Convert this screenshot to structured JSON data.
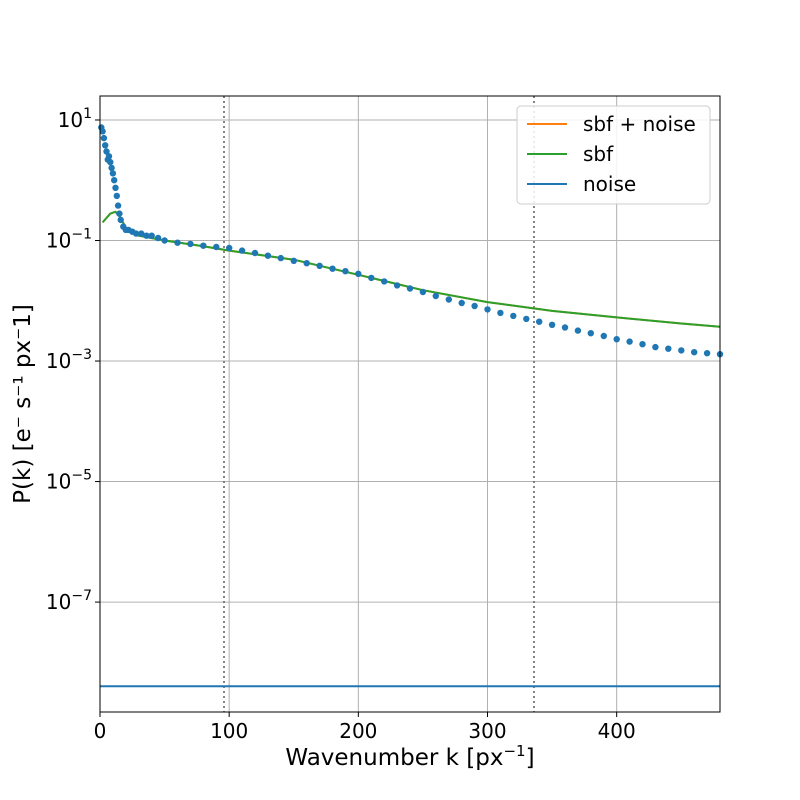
{
  "chart_data": {
    "type": "scatter",
    "xlabel_main": "Wavenumber k  [px",
    "xlabel_sup": "−1",
    "xlabel_end": "]",
    "ylabel": "P(k) [e⁻ s⁻¹ px⁻1]",
    "x_range": [
      0,
      480
    ],
    "y_scale": "log",
    "y_range": [
      1.5e-09,
      25
    ],
    "x_ticks": [
      0,
      100,
      200,
      300,
      400
    ],
    "x_tick_labels": [
      "0",
      "100",
      "200",
      "300",
      "400"
    ],
    "y_ticks": [
      10,
      0.1,
      0.001,
      1e-05,
      1e-07
    ],
    "y_tick_labels": [
      {
        "base": "10",
        "exp": "1"
      },
      {
        "base": "10",
        "exp": "−1"
      },
      {
        "base": "10",
        "exp": "−3"
      },
      {
        "base": "10",
        "exp": "−5"
      },
      {
        "base": "10",
        "exp": "−7"
      }
    ],
    "grid": true,
    "legend_position": "top-right",
    "vertical_lines": [
      96,
      336
    ],
    "colors": {
      "sbf_plus_noise": "#ff7f0e",
      "sbf": "#2ca02c",
      "noise": "#1f77b4",
      "data": "#1f77b4"
    },
    "series": [
      {
        "name": "sbf + noise",
        "kind": "line",
        "x": [
          2,
          8,
          12,
          16,
          20,
          30,
          50,
          80,
          100,
          150,
          200,
          250,
          300,
          350,
          400,
          450,
          480
        ],
        "y": [
          0.2,
          0.28,
          0.3,
          0.24,
          0.16,
          0.12,
          0.1,
          0.08,
          0.068,
          0.048,
          0.027,
          0.015,
          0.0095,
          0.0068,
          0.0053,
          0.0042,
          0.0037
        ]
      },
      {
        "name": "sbf",
        "kind": "line",
        "x": [
          2,
          8,
          12,
          16,
          20,
          30,
          50,
          80,
          100,
          150,
          200,
          250,
          300,
          350,
          400,
          450,
          480
        ],
        "y": [
          0.2,
          0.28,
          0.3,
          0.24,
          0.16,
          0.12,
          0.1,
          0.08,
          0.068,
          0.048,
          0.027,
          0.015,
          0.0095,
          0.0068,
          0.0053,
          0.0042,
          0.0037
        ]
      },
      {
        "name": "noise",
        "kind": "line",
        "x": [
          0,
          480
        ],
        "y": [
          4e-09,
          4e-09
        ]
      },
      {
        "name": "",
        "kind": "points",
        "x": [
          1,
          2,
          3,
          4,
          5,
          6,
          7,
          8,
          9,
          10,
          11,
          12,
          13,
          14,
          15,
          16,
          18,
          20,
          22,
          25,
          28,
          32,
          36,
          40,
          45,
          50,
          60,
          70,
          80,
          90,
          100,
          110,
          120,
          130,
          140,
          150,
          160,
          170,
          180,
          190,
          200,
          210,
          220,
          230,
          240,
          250,
          260,
          270,
          280,
          290,
          300,
          310,
          320,
          330,
          340,
          350,
          360,
          370,
          380,
          390,
          400,
          410,
          420,
          430,
          440,
          450,
          460,
          470,
          480
        ],
        "y": [
          7.5,
          6.5,
          5.0,
          3.8,
          3.0,
          2.2,
          2.5,
          2.0,
          1.6,
          1.3,
          1.0,
          0.75,
          0.55,
          0.38,
          0.28,
          0.22,
          0.17,
          0.15,
          0.15,
          0.14,
          0.13,
          0.13,
          0.12,
          0.12,
          0.11,
          0.1,
          0.092,
          0.088,
          0.082,
          0.078,
          0.075,
          0.068,
          0.062,
          0.056,
          0.051,
          0.046,
          0.042,
          0.038,
          0.034,
          0.031,
          0.028,
          0.024,
          0.021,
          0.018,
          0.016,
          0.014,
          0.012,
          0.0105,
          0.0092,
          0.0082,
          0.0072,
          0.0063,
          0.0056,
          0.005,
          0.0045,
          0.004,
          0.0036,
          0.0032,
          0.0029,
          0.0026,
          0.0023,
          0.0021,
          0.0019,
          0.0017,
          0.0016,
          0.0015,
          0.0014,
          0.00135,
          0.0013
        ]
      }
    ]
  }
}
